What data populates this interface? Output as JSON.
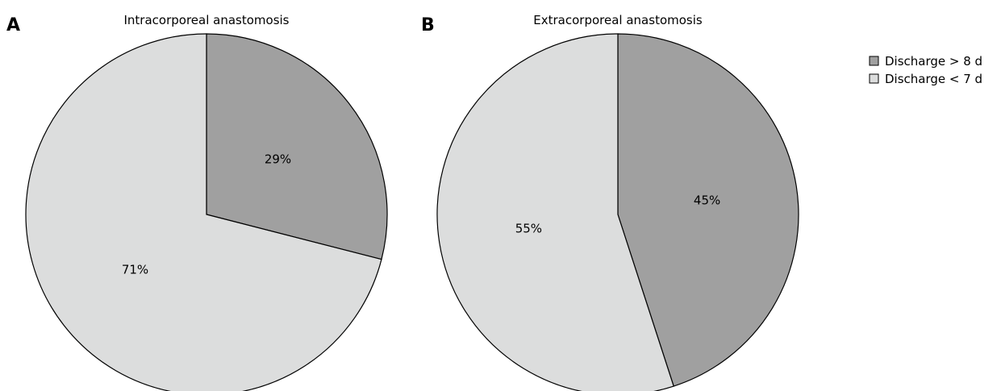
{
  "chart_data": [
    {
      "type": "pie",
      "panel": "A",
      "title": "Intracorporeal anastomosis",
      "slices": [
        {
          "label": "Discharge > 8 d",
          "value": 29,
          "display": "29%",
          "color": "#a0a0a0"
        },
        {
          "label": "Discharge < 7 d",
          "value": 71,
          "display": "71%",
          "color": "#dcdddd"
        }
      ]
    },
    {
      "type": "pie",
      "panel": "B",
      "title": "Extracorporeal anastomosis",
      "slices": [
        {
          "label": "Discharge > 8 d",
          "value": 45,
          "display": "45%",
          "color": "#a0a0a0"
        },
        {
          "label": "Discharge < 7 d",
          "value": 55,
          "display": "55%",
          "color": "#dcdddd"
        }
      ]
    }
  ],
  "legend": {
    "placement": "top-right",
    "items": [
      {
        "label": "Discharge > 8 d",
        "color": "#a0a0a0"
      },
      {
        "label": "Discharge < 7 d",
        "color": "#dcdddd"
      }
    ]
  }
}
